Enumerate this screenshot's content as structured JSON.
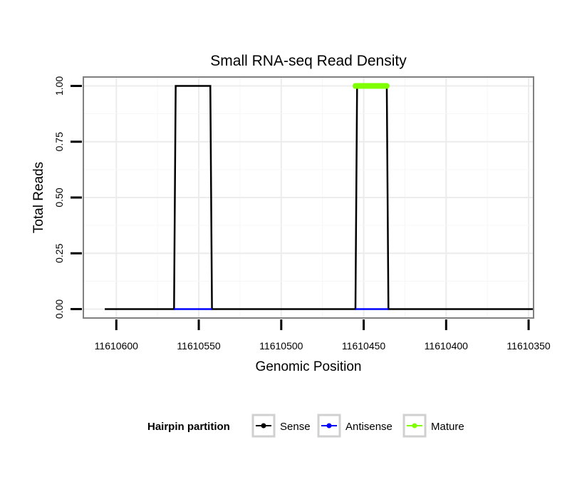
{
  "chart_data": {
    "type": "line",
    "title": "Small RNA-seq Read Density",
    "xlabel": "Genomic Position",
    "ylabel": "Total Reads",
    "x_reversed": true,
    "xlim": [
      11610620,
      11610347
    ],
    "ylim": [
      -0.04,
      1.04
    ],
    "x_ticks": [
      11610600,
      11610550,
      11610500,
      11610450,
      11610400,
      11610350
    ],
    "x_tick_labels": [
      "11610600",
      "11610550",
      "11610500",
      "11610450",
      "11610400",
      "11610350"
    ],
    "y_ticks": [
      0,
      0.25,
      0.5,
      0.75,
      1.0
    ],
    "y_tick_labels": [
      "0.00",
      "0.25",
      "0.50",
      "0.75",
      "1.00"
    ],
    "grid": true,
    "series": [
      {
        "name": "Sense",
        "color": "#000000",
        "x": [
          11610607,
          11610565,
          11610564,
          11610543,
          11610542,
          11610455,
          11610454,
          11610436,
          11610435,
          11610347
        ],
        "y": [
          0,
          0,
          1,
          1,
          0,
          0,
          1,
          1,
          0,
          0
        ]
      },
      {
        "name": "Antisense",
        "color": "#0000ff",
        "segments": [
          {
            "x": [
              11610565,
              11610542
            ],
            "y": [
              0,
              0
            ]
          },
          {
            "x": [
              11610455,
              11610435
            ],
            "y": [
              0,
              0
            ]
          }
        ]
      },
      {
        "name": "Mature",
        "color": "#7fff00",
        "x": [
          11610455,
          11610436
        ],
        "y": [
          1,
          1
        ]
      }
    ],
    "legend": {
      "title": "Hairpin partition",
      "position": "bottom",
      "entries": [
        "Sense",
        "Antisense",
        "Mature"
      ]
    }
  }
}
